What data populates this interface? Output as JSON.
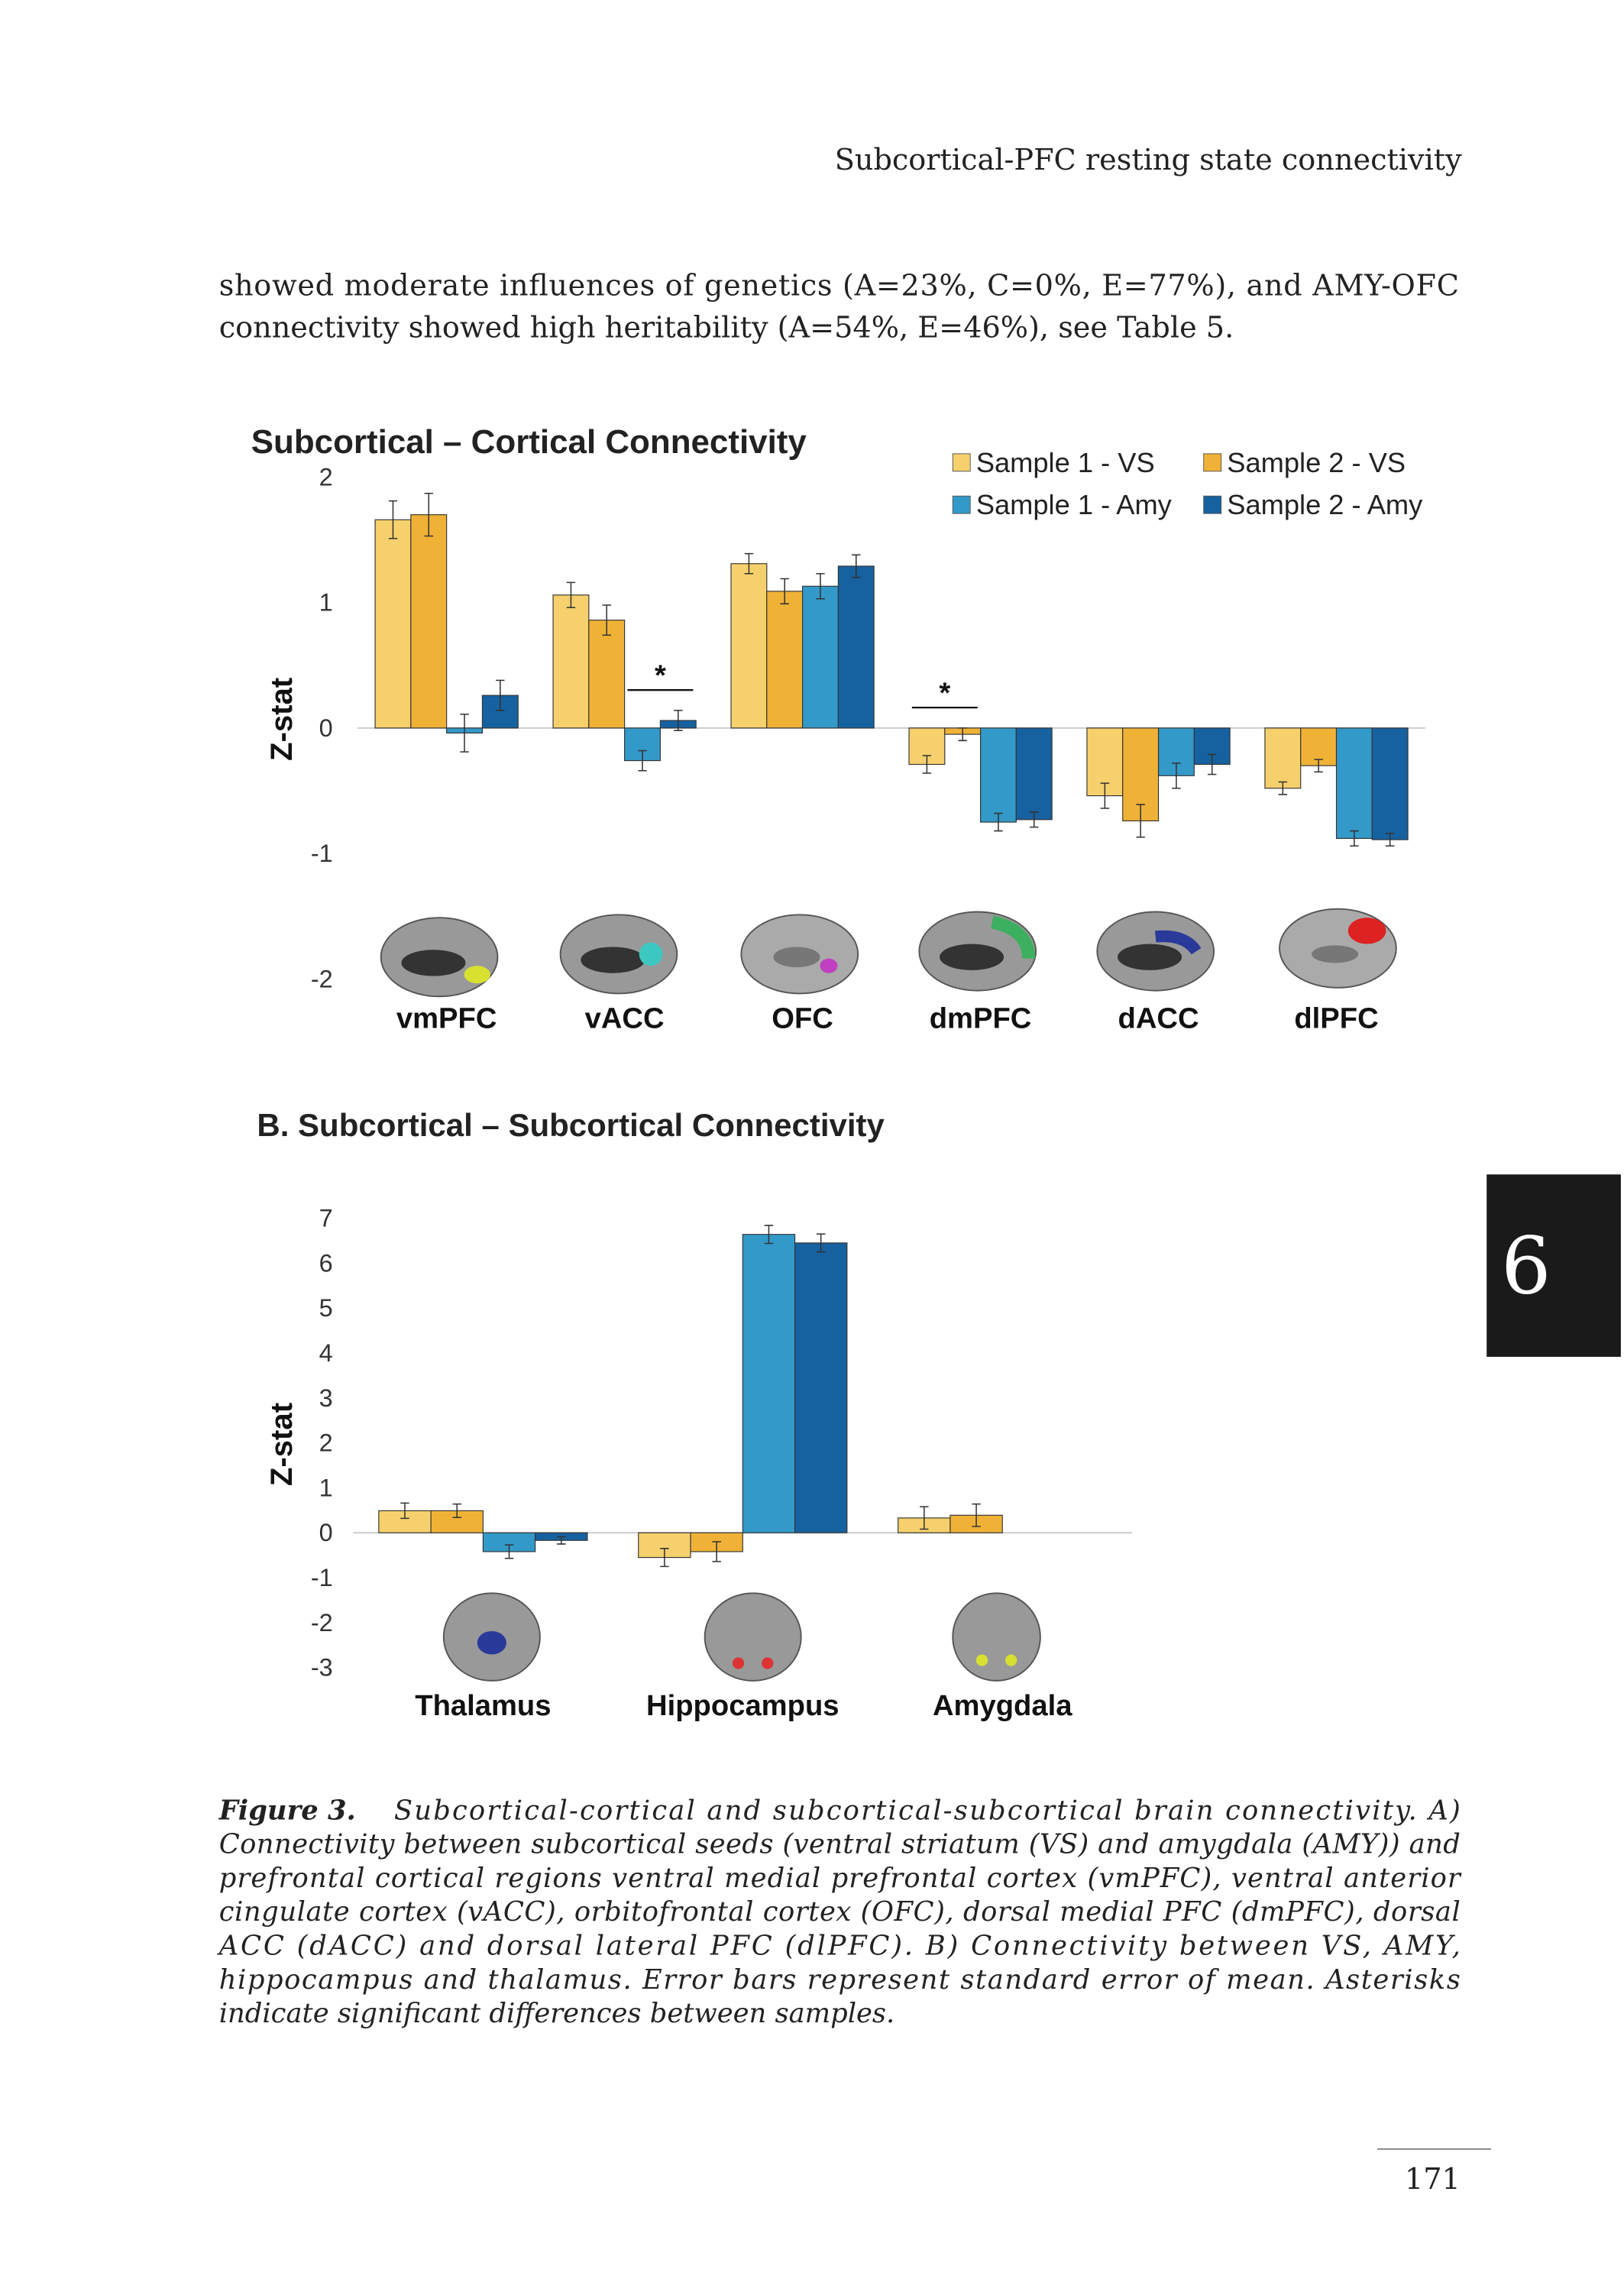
{
  "header": {
    "title": "Subcortical-PFC resting state connectivity"
  },
  "paragraph": {
    "lines": [
      "showed moderate influences of genetics (A=23%, C=0%, E=77%), and AMY-OFC",
      "connectivity showed high heritability (A=54%, E=46%), see Table 5."
    ]
  },
  "chart_data": [
    {
      "type": "bar",
      "title": "Subcortical – Cortical Connectivity",
      "y_label": "Z-stat",
      "categories": [
        "vmPFC",
        "vACC",
        "OFC",
        "dmPFC",
        "dACC",
        "dlPFC"
      ],
      "series": [
        {
          "name": "Sample 1 - VS",
          "color": "#f5d06c",
          "values": [
            1.66,
            1.06,
            1.31,
            -0.29,
            -0.54,
            -0.48
          ],
          "errors": [
            0.15,
            0.1,
            0.08,
            0.07,
            0.1,
            0.05
          ]
        },
        {
          "name": "Sample 2 - VS",
          "color": "#f0b236",
          "values": [
            1.7,
            0.86,
            1.09,
            -0.05,
            -0.74,
            -0.3
          ],
          "errors": [
            0.17,
            0.12,
            0.1,
            0.05,
            0.13,
            0.05
          ]
        },
        {
          "name": "Sample 1 - Amy",
          "color": "#3399c9",
          "values": [
            -0.04,
            -0.26,
            1.13,
            -0.75,
            -0.38,
            -0.88
          ],
          "errors": [
            0.15,
            0.08,
            0.1,
            0.07,
            0.1,
            0.06
          ]
        },
        {
          "name": "Sample 2 - Amy",
          "color": "#1661a0",
          "values": [
            0.26,
            0.06,
            1.29,
            -0.73,
            -0.29,
            -0.89
          ],
          "errors": [
            0.12,
            0.08,
            0.09,
            0.06,
            0.08,
            0.05
          ]
        }
      ],
      "annotations": [
        {
          "text": "*",
          "category": "vACC",
          "between": [
            "Sample 1 - Amy",
            "Sample 2 - Amy"
          ]
        },
        {
          "text": "*",
          "category": "dmPFC",
          "between": [
            "Sample 1 - VS",
            "Sample 2 - VS"
          ]
        }
      ],
      "ylim": [
        -2,
        2
      ],
      "yticks": [
        -2,
        -1,
        0,
        1,
        2
      ],
      "legend": "upper right"
    },
    {
      "type": "bar",
      "title": "B. Subcortical – Subcortical Connectivity",
      "y_label": "Z-stat",
      "categories": [
        "Thalamus",
        "Hippocampus",
        "Amygdala"
      ],
      "series": [
        {
          "color": "#f5d06c",
          "values": [
            0.49,
            -0.55,
            0.33
          ],
          "errors": [
            0.17,
            0.2,
            0.25
          ]
        },
        {
          "color": "#f0b236",
          "values": [
            0.49,
            -0.42,
            0.39
          ],
          "errors": [
            0.15,
            0.22,
            0.25
          ]
        },
        {
          "color": "#3399c9",
          "values": [
            -0.42,
            6.64,
            null
          ],
          "errors": [
            0.15,
            0.2,
            null
          ]
        },
        {
          "color": "#1661a0",
          "values": [
            -0.17,
            6.45,
            null
          ],
          "errors": [
            0.08,
            0.2,
            null
          ]
        }
      ],
      "ylim": [
        -3,
        7
      ],
      "yticks": [
        -3,
        -2,
        -1,
        0,
        1,
        2,
        3,
        4,
        5,
        6,
        7
      ]
    }
  ],
  "caption": {
    "label": "Figure 3.",
    "lines": [
      "Subcortical-cortical and subcortical-subcortical brain connectivity. A)",
      "Connectivity between subcortical seeds (ventral striatum (VS) and amygdala (AMY)) and",
      "prefrontal cortical regions ventral medial prefrontal cortex (vmPFC), ventral anterior",
      "cingulate cortex (vACC), orbitofrontal cortex (OFC), dorsal medial PFC (dmPFC), dorsal",
      "ACC (dACC) and dorsal lateral PFC (dlPFC). B) Connectivity between VS, AMY,",
      "hippocampus and thalamus. Error bars represent standard error of mean. Asterisks",
      "indicate significant differences between samples."
    ]
  },
  "chapter_tab": "6",
  "page_number": "171"
}
